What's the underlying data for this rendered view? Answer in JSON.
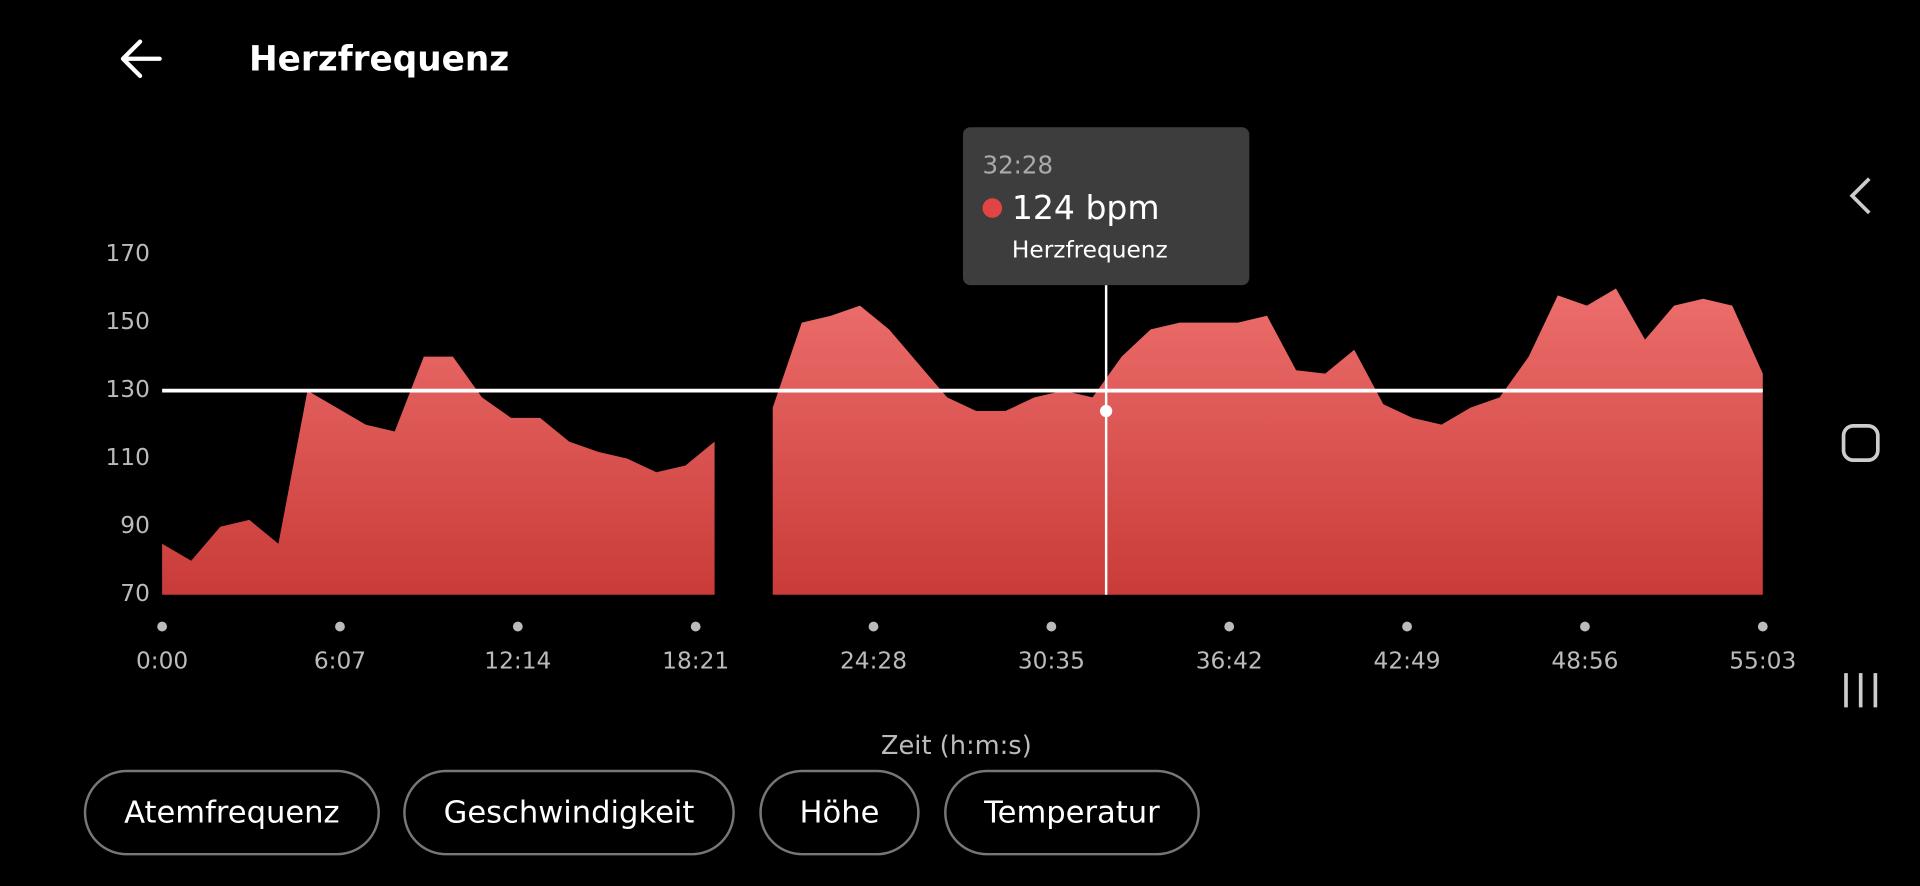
{
  "header": {
    "title": "Herzfrequenz"
  },
  "chart_data": {
    "type": "area",
    "x_label": "Zeit (h:m:s)",
    "x": [
      0,
      60,
      120,
      180,
      240,
      300,
      360,
      420,
      480,
      540,
      600,
      660,
      720,
      780,
      840,
      900,
      960,
      1020,
      1080,
      1140,
      1200,
      1260,
      1320,
      1380,
      1440,
      1500,
      1560,
      1620,
      1680,
      1740,
      1800,
      1860,
      1920,
      1980,
      2040,
      2100,
      2160,
      2220,
      2280,
      2340,
      2400,
      2460,
      2520,
      2580,
      2640,
      2700,
      2760,
      2820,
      2880,
      2940,
      3000,
      3060,
      3120,
      3180,
      3240,
      3303
    ],
    "series": [
      {
        "name": "Herzfrequenz",
        "color": "#e0504e",
        "values": [
          85,
          80,
          90,
          92,
          85,
          130,
          125,
          120,
          118,
          140,
          140,
          128,
          122,
          122,
          115,
          112,
          110,
          106,
          108,
          115,
          null,
          125,
          150,
          152,
          155,
          148,
          138,
          128,
          124,
          124,
          128,
          130,
          128,
          140,
          148,
          150,
          150,
          150,
          152,
          136,
          135,
          142,
          126,
          122,
          120,
          125,
          128,
          140,
          158,
          155,
          160,
          145,
          155,
          157,
          155,
          135
        ]
      }
    ],
    "xlim": [
      0,
      3303
    ],
    "xticks": [
      {
        "value": 0,
        "label": "0:00"
      },
      {
        "value": 367,
        "label": "6:07"
      },
      {
        "value": 734,
        "label": "12:14"
      },
      {
        "value": 1101,
        "label": "18:21"
      },
      {
        "value": 1468,
        "label": "24:28"
      },
      {
        "value": 1835,
        "label": "30:35"
      },
      {
        "value": 2202,
        "label": "36:42"
      },
      {
        "value": 2569,
        "label": "42:49"
      },
      {
        "value": 2936,
        "label": "48:56"
      },
      {
        "value": 3303,
        "label": "55:03"
      }
    ],
    "ylim": [
      70,
      170
    ],
    "yticks": [
      70,
      90,
      110,
      130,
      150,
      170
    ],
    "reference_line": 130,
    "tooltip": {
      "x": 1948,
      "x_label": "32:28",
      "value": 124,
      "value_label": "124 bpm"
    }
  },
  "buttons": [
    "Atemfrequenz",
    "Geschwindigkeit",
    "Höhe",
    "Temperatur"
  ]
}
